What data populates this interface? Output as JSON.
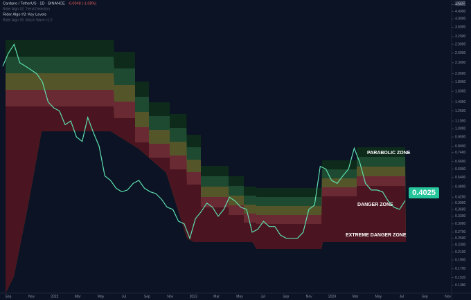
{
  "header": {
    "symbol": "Cardano / TetherUS · 1D · BINANCE",
    "change": "-0.0048 (-1.08%)",
    "indicators": [
      "Rider Algo #2: Trend Detection",
      "Rider Algo #3: Key Levels",
      "Rider Algo #5: Macro Wave v1.0"
    ]
  },
  "currency": "USDT",
  "price_tag": "0.4025",
  "chart_data": {
    "type": "line",
    "log_scale": true,
    "color": "#5ee0b0",
    "ylim": [
      0.125,
      5.08
    ],
    "yticks": [
      {
        "value": 4.8,
        "label": "4.8000"
      },
      {
        "value": 4.4,
        "label": "4.4000"
      },
      {
        "value": 4,
        "label": "4.0000"
      },
      {
        "value": 3.6,
        "label": "3.6000"
      },
      {
        "value": 3.2,
        "label": "3.2000"
      },
      {
        "value": 2.9,
        "label": "2.9000"
      },
      {
        "value": 2.6,
        "label": "2.6000"
      },
      {
        "value": 2.3,
        "label": "2.3000"
      },
      {
        "value": 2,
        "label": "2.0000"
      },
      {
        "value": 1.8,
        "label": "1.8000"
      },
      {
        "value": 1.6,
        "label": "1.6000"
      },
      {
        "value": 1.4,
        "label": "1.4000"
      },
      {
        "value": 1.25,
        "label": "1.2500"
      },
      {
        "value": 1.1,
        "label": "1.1000"
      },
      {
        "value": 1,
        "label": "1.0000"
      },
      {
        "value": 0.9,
        "label": "0.9000"
      },
      {
        "value": 0.8,
        "label": "0.8000"
      },
      {
        "value": 0.74,
        "label": "0.7400"
      },
      {
        "value": 0.66,
        "label": "0.6600"
      },
      {
        "value": 0.6,
        "label": "0.6000"
      },
      {
        "value": 0.54,
        "label": "0.5400"
      },
      {
        "value": 0.48,
        "label": "0.4800"
      },
      {
        "value": 0.42,
        "label": "0.4200"
      },
      {
        "value": 0.39,
        "label": "0.3900"
      },
      {
        "value": 0.36,
        "label": "0.3600"
      },
      {
        "value": 0.33,
        "label": "0.3300"
      },
      {
        "value": 0.3,
        "label": "0.3000"
      },
      {
        "value": 0.27,
        "label": "0.2700"
      },
      {
        "value": 0.25,
        "label": "0.2500"
      },
      {
        "value": 0.23,
        "label": "0.2300"
      },
      {
        "value": 0.21,
        "label": "0.2100"
      },
      {
        "value": 0.19,
        "label": "0.1900"
      },
      {
        "value": 0.17,
        "label": "0.1700"
      },
      {
        "value": 0.152,
        "label": "0.1520"
      },
      {
        "value": 0.138,
        "label": "0.1380"
      }
    ],
    "xlabels": [
      "Sep",
      "Nov",
      "2022",
      "Mar",
      "May",
      "Jul",
      "Sep",
      "Nov",
      "2023",
      "Mar",
      "May",
      "Jul",
      "Sep",
      "Nov",
      "2024",
      "Mar",
      "May",
      "Jul",
      "Sep",
      "Nov"
    ],
    "values": [
      2.2,
      2.6,
      2.9,
      2.3,
      2.2,
      2.1,
      2.0,
      1.8,
      1.4,
      1.3,
      1.25,
      1.05,
      1.1,
      0.9,
      0.85,
      1.15,
      0.95,
      0.8,
      0.55,
      0.52,
      0.47,
      0.45,
      0.46,
      0.5,
      0.52,
      0.47,
      0.45,
      0.44,
      0.41,
      0.37,
      0.36,
      0.31,
      0.3,
      0.25,
      0.32,
      0.35,
      0.39,
      0.37,
      0.33,
      0.36,
      0.42,
      0.4,
      0.37,
      0.36,
      0.27,
      0.28,
      0.31,
      0.29,
      0.29,
      0.26,
      0.25,
      0.25,
      0.25,
      0.27,
      0.36,
      0.38,
      0.62,
      0.6,
      0.52,
      0.5,
      0.55,
      0.6,
      0.78,
      0.65,
      0.5,
      0.46,
      0.46,
      0.45,
      0.4,
      0.37,
      0.36,
      0.4025
    ],
    "annotations": [
      "PARABOLIC ZONE",
      "DANGER ZONE",
      "EXTREME DANGER ZONE"
    ]
  }
}
